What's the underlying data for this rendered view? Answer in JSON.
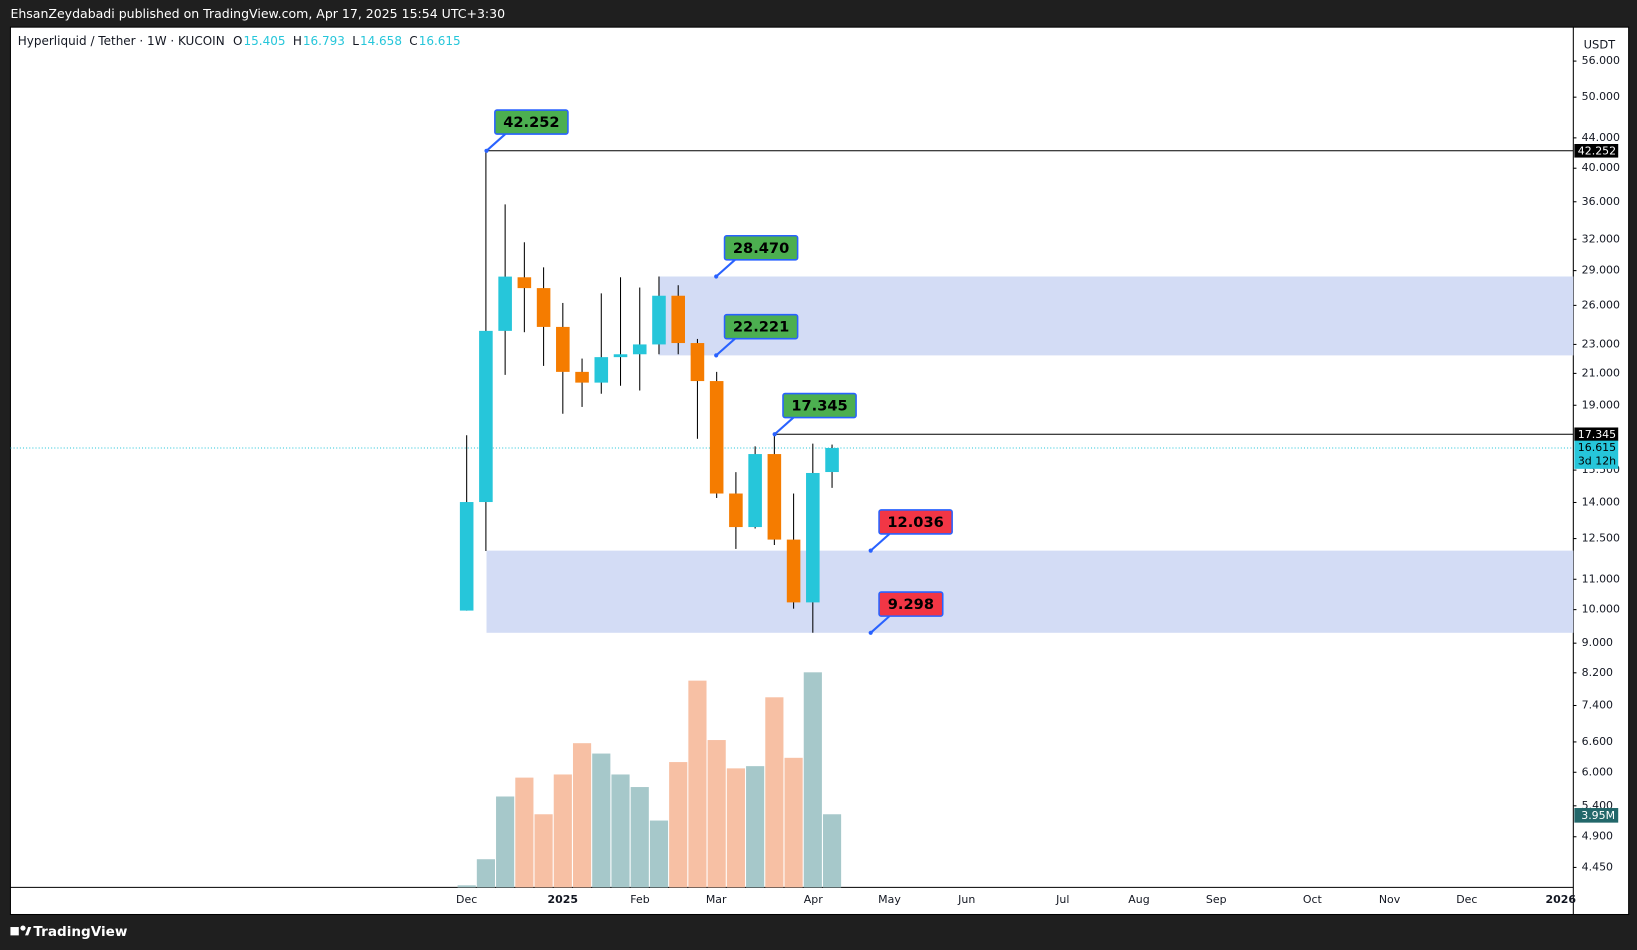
{
  "chart_data": {
    "type": "candlestick",
    "header": "EhsanZeydabadi published on TradingView.com, Apr 17, 2025 15:54 UTC+3:30",
    "symbol": "Hyperliquid / Tether · 1W · KUCOIN",
    "ohlc_letters": [
      "O",
      "H",
      "L",
      "C"
    ],
    "currency": "USDT",
    "countdown": "3d 12h",
    "brand": "TradingView",
    "log_scale": true,
    "ylim": [
      4.18,
      62.3
    ],
    "yticks": [
      {
        "value": 56,
        "label": "56.000"
      },
      {
        "value": 50,
        "label": "50.000"
      },
      {
        "value": 44,
        "label": "44.000"
      },
      {
        "value": 40,
        "label": "40.000"
      },
      {
        "value": 36,
        "label": "36.000"
      },
      {
        "value": 32,
        "label": "32.000"
      },
      {
        "value": 29,
        "label": "29.000"
      },
      {
        "value": 26,
        "label": "26.000"
      },
      {
        "value": 23,
        "label": "23.000"
      },
      {
        "value": 21,
        "label": "21.000"
      },
      {
        "value": 19,
        "label": "19.000"
      },
      {
        "value": 15.5,
        "label": "15.500"
      },
      {
        "value": 14,
        "label": "14.000"
      },
      {
        "value": 12.5,
        "label": "12.500"
      },
      {
        "value": 11,
        "label": "11.000"
      },
      {
        "value": 10,
        "label": "10.000"
      },
      {
        "value": 9,
        "label": "9.000"
      },
      {
        "value": 8.2,
        "label": "8.200"
      },
      {
        "value": 7.4,
        "label": "7.400"
      },
      {
        "value": 6.6,
        "label": "6.600"
      },
      {
        "value": 6,
        "label": "6.000"
      },
      {
        "value": 5.4,
        "label": "5.400"
      },
      {
        "value": 4.9,
        "label": "4.900"
      },
      {
        "value": 4.45,
        "label": "4.450"
      }
    ],
    "time_labels": [
      "Dec",
      "2025",
      "Feb",
      "Mar",
      "Apr",
      "May",
      "Jun",
      "Jul",
      "Aug",
      "Sep",
      "Oct",
      "Nov",
      "Dec",
      "2026"
    ],
    "open": [
      9.97,
      14.02,
      24.0,
      28.4,
      27.45,
      24.3,
      21.1,
      20.4,
      22.1,
      22.3,
      23.0,
      26.8,
      23.1,
      20.5,
      14.4,
      12.96,
      16.3,
      12.46,
      10.23,
      15.405
    ],
    "high": [
      17.29,
      42.252,
      35.7,
      31.7,
      29.3,
      26.2,
      22.0,
      27.0,
      28.4,
      27.5,
      28.47,
      27.7,
      23.4,
      21.1,
      15.4,
      16.7,
      17.345,
      14.4,
      16.84,
      16.793
    ],
    "low": [
      9.97,
      12.02,
      20.9,
      23.9,
      21.5,
      18.5,
      18.9,
      19.7,
      20.2,
      19.9,
      22.3,
      22.3,
      17.1,
      14.2,
      12.1,
      12.9,
      12.25,
      10.03,
      9.298,
      14.658
    ],
    "close": [
      14.02,
      24.0,
      28.46,
      27.45,
      24.3,
      21.1,
      20.4,
      22.1,
      22.3,
      23.0,
      26.8,
      23.1,
      20.5,
      14.4,
      12.96,
      16.3,
      12.46,
      10.23,
      15.36,
      16.615
    ],
    "up_color": "#26c6da",
    "down_color": "#f57c00",
    "volume": {
      "values": [
        0.11,
        1.52,
        4.91,
        5.93,
        3.95,
        6.1,
        7.79,
        7.23,
        6.1,
        5.42,
        3.61,
        6.77,
        11.17,
        7.96,
        6.43,
        6.55,
        10.27,
        7.0,
        11.62,
        3.95
      ],
      "value_labels": [
        null,
        null,
        null,
        null,
        null,
        null,
        null,
        null,
        null,
        null,
        null,
        null,
        null,
        null,
        null,
        null,
        null,
        null,
        null,
        "3.95M"
      ],
      "up_color": "#a6c8ca",
      "down_color": "#f7c0a4"
    },
    "levels": [
      42.252,
      {
        "value": 28.47,
        "label": "28.470"
      },
      22.221,
      17.345,
      12.036,
      9.298
    ],
    "level_colors": [
      "#4caf50",
      "#4caf50",
      "#4caf50",
      "#4caf50",
      "#f23645",
      "#f23645"
    ],
    "zone_color": "#d3dcf5"
  }
}
